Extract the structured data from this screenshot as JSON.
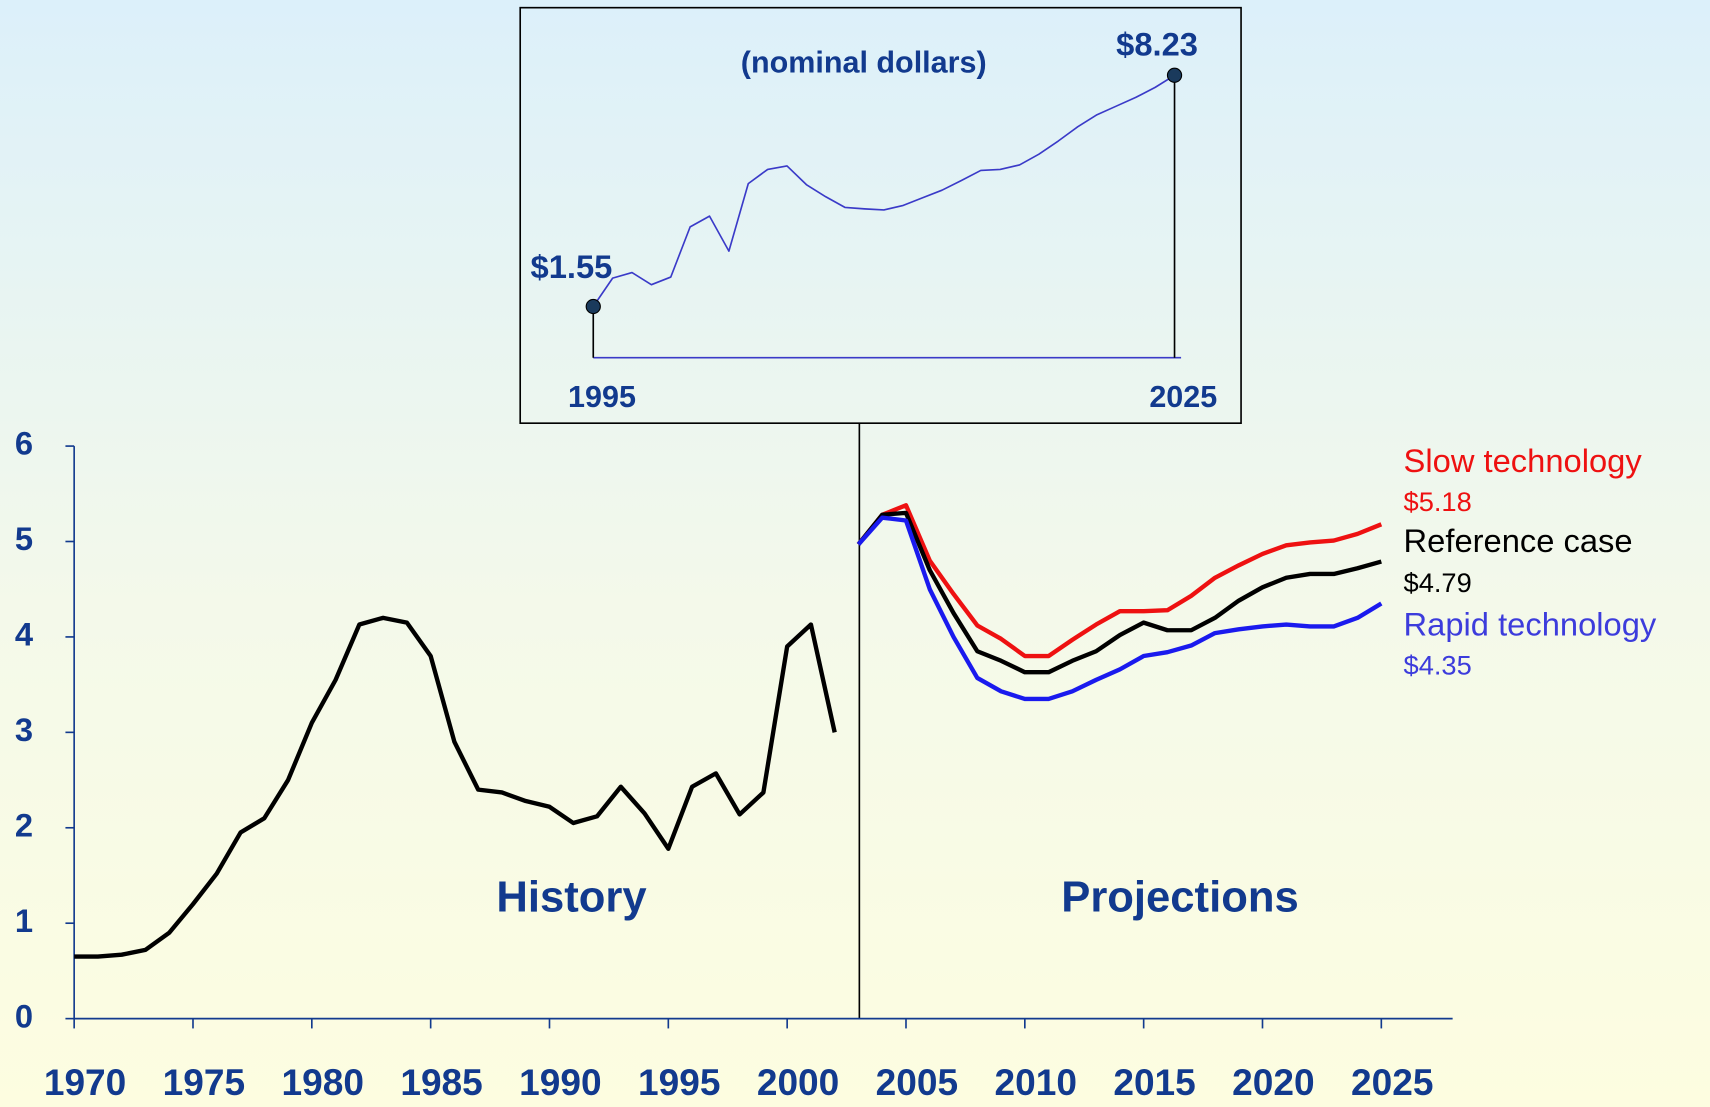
{
  "chart_data": [
    {
      "type": "line",
      "xlim": [
        1970,
        2028
      ],
      "xticks": [
        1970,
        1975,
        1980,
        1985,
        1990,
        1995,
        2000,
        2005,
        2010,
        2015,
        2020,
        2025
      ],
      "ylim": [
        0,
        6
      ],
      "yticks": [
        0,
        1,
        2,
        3,
        4,
        5,
        6
      ],
      "annotations": [
        "Projections"
      ],
      "series": [
        {
          "name": "History",
          "color": "#000000",
          "x": [
            1970,
            1971,
            1972,
            1973,
            1974,
            1975,
            1976,
            1977,
            1978,
            1979,
            1980,
            1981,
            1982,
            1983,
            1984,
            1985,
            1986,
            1987,
            1988,
            1989,
            1990,
            1991,
            1992,
            1993,
            1994,
            1995,
            1996,
            1997,
            1998,
            1999,
            2000,
            2001,
            2002
          ],
          "values": [
            0.65,
            0.65,
            0.67,
            0.72,
            0.9,
            1.2,
            1.52,
            1.95,
            2.1,
            2.5,
            3.1,
            3.55,
            4.13,
            4.2,
            4.15,
            3.8,
            2.9,
            2.4,
            2.37,
            2.28,
            2.22,
            2.05,
            2.12,
            2.43,
            2.15,
            1.78,
            2.43,
            2.57,
            2.14,
            2.37,
            3.9,
            4.13,
            3.0
          ]
        },
        {
          "name": "Slow technology",
          "color": "#ee1111",
          "x": [
            2003,
            2004,
            2005,
            2006,
            2007,
            2008,
            2009,
            2010,
            2011,
            2012,
            2013,
            2014,
            2015,
            2016,
            2017,
            2018,
            2019,
            2020,
            2021,
            2022,
            2023,
            2024,
            2025
          ],
          "values": [
            4.97,
            5.28,
            5.38,
            4.8,
            4.45,
            4.12,
            3.98,
            3.8,
            3.8,
            3.97,
            4.13,
            4.27,
            4.27,
            4.28,
            4.43,
            4.62,
            4.75,
            4.87,
            4.96,
            4.99,
            5.01,
            5.08,
            5.18
          ],
          "value_labels": [
            null,
            null,
            null,
            null,
            null,
            null,
            null,
            null,
            null,
            null,
            null,
            null,
            null,
            null,
            null,
            null,
            null,
            null,
            null,
            null,
            null,
            null,
            "$5.18"
          ]
        },
        {
          "name": "Reference case",
          "color": "#000000",
          "x": [
            2003,
            2004,
            2005,
            2006,
            2007,
            2008,
            2009,
            2010,
            2011,
            2012,
            2013,
            2014,
            2015,
            2016,
            2017,
            2018,
            2019,
            2020,
            2021,
            2022,
            2023,
            2024,
            2025
          ],
          "values": [
            4.97,
            5.28,
            5.3,
            4.7,
            4.25,
            3.85,
            3.75,
            3.63,
            3.63,
            3.75,
            3.85,
            4.02,
            4.15,
            4.07,
            4.07,
            4.2,
            4.38,
            4.52,
            4.62,
            4.66,
            4.66,
            4.72,
            4.79
          ],
          "value_labels": [
            null,
            null,
            null,
            null,
            null,
            null,
            null,
            null,
            null,
            null,
            null,
            null,
            null,
            null,
            null,
            null,
            null,
            null,
            null,
            null,
            null,
            null,
            "$4.79"
          ]
        },
        {
          "name": "Rapid technology",
          "color": "#1a1aee",
          "x": [
            2003,
            2004,
            2005,
            2006,
            2007,
            2008,
            2009,
            2010,
            2011,
            2012,
            2013,
            2014,
            2015,
            2016,
            2017,
            2018,
            2019,
            2020,
            2021,
            2022,
            2023,
            2024,
            2025
          ],
          "values": [
            4.97,
            5.25,
            5.22,
            4.5,
            4.0,
            3.57,
            3.43,
            3.35,
            3.35,
            3.43,
            3.55,
            3.66,
            3.8,
            3.84,
            3.91,
            4.04,
            4.08,
            4.11,
            4.13,
            4.11,
            4.11,
            4.2,
            4.35
          ],
          "value_labels": [
            null,
            null,
            null,
            null,
            null,
            null,
            null,
            null,
            null,
            null,
            null,
            null,
            null,
            null,
            null,
            null,
            null,
            null,
            null,
            null,
            null,
            null,
            "$4.35"
          ]
        }
      ]
    },
    {
      "type": "line",
      "subtitle": "(nominal dollars)",
      "color": "#3a3ac8",
      "xlim": [
        1995,
        2025
      ],
      "xticks": [
        1995,
        2025
      ],
      "ylim": [
        0,
        8.5
      ],
      "x": [
        1995,
        1996,
        1997,
        1998,
        1999,
        2000,
        2001,
        2002,
        2003,
        2004,
        2005,
        2006,
        2007,
        2008,
        2009,
        2010,
        2011,
        2012,
        2013,
        2014,
        2015,
        2016,
        2017,
        2018,
        2019,
        2020,
        2021,
        2022,
        2023,
        2024,
        2025
      ],
      "values": [
        1.55,
        2.37,
        2.53,
        2.18,
        2.4,
        3.85,
        4.16,
        3.15,
        5.1,
        5.51,
        5.61,
        5.07,
        4.72,
        4.41,
        4.37,
        4.34,
        4.47,
        4.69,
        4.91,
        5.19,
        5.48,
        5.51,
        5.64,
        5.95,
        6.33,
        6.74,
        7.09,
        7.34,
        7.59,
        7.88,
        8.23
      ],
      "value_labels": [
        "$1.55",
        null,
        null,
        null,
        null,
        null,
        null,
        null,
        null,
        null,
        null,
        null,
        null,
        null,
        null,
        null,
        null,
        null,
        null,
        null,
        null,
        null,
        null,
        null,
        null,
        null,
        null,
        null,
        null,
        null,
        "$8.23"
      ]
    }
  ]
}
